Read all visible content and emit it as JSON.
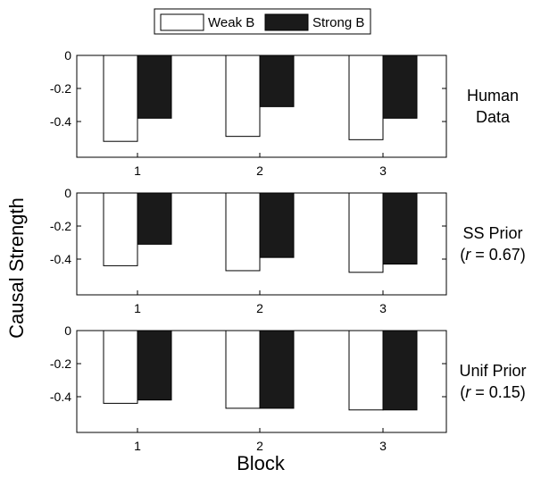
{
  "chart_data": {
    "type": "bar",
    "xlabel": "Block",
    "ylabel": "Causal Strength",
    "legend": {
      "placement": "top-center",
      "entries": [
        "Weak B",
        "Strong B"
      ]
    },
    "categories": [
      "1",
      "2",
      "3"
    ],
    "ylim": [
      -0.6,
      0
    ],
    "yticks": [
      "0",
      "-0.2",
      "-0.4"
    ],
    "grid": false,
    "panels": [
      {
        "label_lines": [
          "Human",
          "Data"
        ],
        "series": [
          {
            "name": "Weak B",
            "color": "#ffffff",
            "values": [
              -0.52,
              -0.49,
              -0.51
            ]
          },
          {
            "name": "Strong B",
            "color": "#1a1a1a",
            "values": [
              -0.38,
              -0.31,
              -0.38
            ]
          }
        ]
      },
      {
        "label_lines": [
          "SS Prior",
          "(r = 0.67)"
        ],
        "series": [
          {
            "name": "Weak B",
            "color": "#ffffff",
            "values": [
              -0.44,
              -0.47,
              -0.48
            ]
          },
          {
            "name": "Strong B",
            "color": "#1a1a1a",
            "values": [
              -0.31,
              -0.39,
              -0.43
            ]
          }
        ]
      },
      {
        "label_lines": [
          "Unif Prior",
          "(r = 0.15)"
        ],
        "series": [
          {
            "name": "Weak B",
            "color": "#ffffff",
            "values": [
              -0.44,
              -0.47,
              -0.48
            ]
          },
          {
            "name": "Strong B",
            "color": "#1a1a1a",
            "values": [
              -0.42,
              -0.47,
              -0.48
            ]
          }
        ]
      }
    ]
  }
}
